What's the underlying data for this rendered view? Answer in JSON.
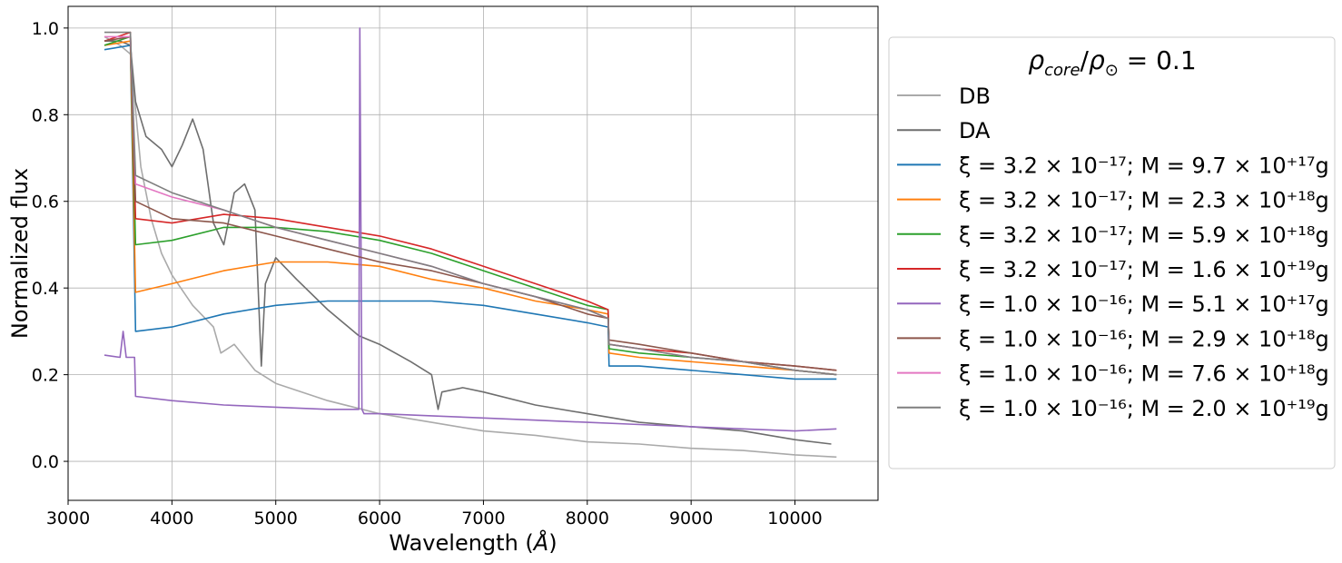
{
  "chart_data": {
    "type": "line",
    "title": "",
    "xlabel": "Wavelength ($\\AA$)",
    "ylabel": "Normalized flux",
    "xlim": [
      3000,
      10800
    ],
    "ylim": [
      -0.09,
      1.05
    ],
    "xticks": [
      "3000",
      "4000",
      "5000",
      "6000",
      "7000",
      "8000",
      "9000",
      "10000"
    ],
    "yticks": [
      "0.0",
      "0.2",
      "0.4",
      "0.6",
      "0.8",
      "1.0"
    ],
    "grid": true,
    "legend_placement": "outside-right",
    "legend_title": "ρ_core/ρ_⊙ = 0.1",
    "series": [
      {
        "name": "DB",
        "color": "#aaaaaa",
        "x": [
          3350,
          3500,
          3600,
          3700,
          3800,
          3900,
          4000,
          4200,
          4400,
          4471,
          4600,
          4800,
          5000,
          5500,
          6000,
          6500,
          7000,
          7500,
          8000,
          8500,
          9000,
          9500,
          10000,
          10400
        ],
        "y": [
          0.98,
          0.96,
          0.94,
          0.68,
          0.56,
          0.48,
          0.43,
          0.36,
          0.31,
          0.25,
          0.27,
          0.21,
          0.18,
          0.14,
          0.11,
          0.09,
          0.07,
          0.06,
          0.045,
          0.04,
          0.03,
          0.025,
          0.015,
          0.01
        ]
      },
      {
        "name": "DA",
        "color": "#6e6e6e",
        "x": [
          3350,
          3500,
          3600,
          3650,
          3750,
          3900,
          4000,
          4100,
          4200,
          4300,
          4400,
          4500,
          4600,
          4700,
          4800,
          4861,
          4900,
          5000,
          5200,
          5500,
          5800,
          6000,
          6300,
          6500,
          6563,
          6600,
          6800,
          7000,
          7500,
          8000,
          8500,
          9000,
          9500,
          10000,
          10350
        ],
        "y": [
          0.97,
          0.97,
          0.96,
          0.83,
          0.75,
          0.72,
          0.68,
          0.73,
          0.79,
          0.72,
          0.55,
          0.5,
          0.62,
          0.64,
          0.58,
          0.22,
          0.41,
          0.47,
          0.42,
          0.35,
          0.29,
          0.27,
          0.23,
          0.2,
          0.12,
          0.16,
          0.17,
          0.16,
          0.13,
          0.11,
          0.09,
          0.08,
          0.07,
          0.05,
          0.04
        ]
      },
      {
        "name": "ξ = 3.2 × 10⁻¹⁷; M = 9.7 × 10⁺¹⁷g",
        "color": "#1f77b4",
        "x": [
          3350,
          3600,
          3650,
          4000,
          4500,
          5000,
          5500,
          6000,
          6500,
          7000,
          7500,
          8000,
          8200,
          8210,
          8500,
          9000,
          9500,
          10000,
          10400
        ],
        "y": [
          0.95,
          0.96,
          0.3,
          0.31,
          0.34,
          0.36,
          0.37,
          0.37,
          0.37,
          0.36,
          0.34,
          0.32,
          0.31,
          0.22,
          0.22,
          0.21,
          0.2,
          0.19,
          0.19
        ]
      },
      {
        "name": "ξ = 3.2 × 10⁻¹⁷; M = 2.3 × 10⁺¹⁸g",
        "color": "#ff7f0e",
        "x": [
          3350,
          3600,
          3650,
          4000,
          4500,
          5000,
          5500,
          6000,
          6500,
          7000,
          7500,
          8000,
          8200,
          8210,
          8500,
          9000,
          9500,
          10000,
          10400
        ],
        "y": [
          0.96,
          0.97,
          0.39,
          0.41,
          0.44,
          0.46,
          0.46,
          0.45,
          0.42,
          0.4,
          0.37,
          0.35,
          0.34,
          0.25,
          0.24,
          0.23,
          0.22,
          0.21,
          0.2
        ]
      },
      {
        "name": "ξ = 3.2 × 10⁻¹⁷; M = 5.9 × 10⁺¹⁸g",
        "color": "#2ca02c",
        "x": [
          3350,
          3600,
          3650,
          4000,
          4500,
          5000,
          5500,
          6000,
          6500,
          7000,
          7500,
          8000,
          8200,
          8210,
          8500,
          9000,
          9500,
          10000,
          10400
        ],
        "y": [
          0.96,
          0.98,
          0.5,
          0.51,
          0.54,
          0.54,
          0.53,
          0.51,
          0.48,
          0.44,
          0.4,
          0.36,
          0.35,
          0.26,
          0.25,
          0.24,
          0.23,
          0.21,
          0.2
        ]
      },
      {
        "name": "ξ = 3.2 × 10⁻¹⁷; M = 1.6 × 10⁺¹⁹g",
        "color": "#d62728",
        "x": [
          3350,
          3600,
          3650,
          4000,
          4500,
          5000,
          5500,
          6000,
          6500,
          7000,
          7500,
          8000,
          8200,
          8210,
          8500,
          9000,
          9500,
          10000,
          10400
        ],
        "y": [
          0.97,
          0.99,
          0.56,
          0.55,
          0.57,
          0.56,
          0.54,
          0.52,
          0.49,
          0.45,
          0.41,
          0.37,
          0.35,
          0.27,
          0.26,
          0.25,
          0.23,
          0.22,
          0.21
        ]
      },
      {
        "name": "ξ = 1.0 × 10⁻¹⁶; M = 5.1 × 10⁺¹⁷g",
        "color": "#9467bd",
        "x": [
          3350,
          3500,
          3530,
          3560,
          3640,
          3650,
          4000,
          4500,
          5000,
          5500,
          5800,
          5810,
          5830,
          5850,
          6000,
          6500,
          7000,
          7500,
          8000,
          8500,
          9000,
          9500,
          10000,
          10400
        ],
        "y": [
          0.245,
          0.24,
          0.3,
          0.24,
          0.24,
          0.15,
          0.14,
          0.13,
          0.125,
          0.12,
          0.12,
          1.0,
          0.12,
          0.11,
          0.11,
          0.105,
          0.1,
          0.095,
          0.09,
          0.085,
          0.08,
          0.075,
          0.07,
          0.075
        ]
      },
      {
        "name": "ξ = 1.0 × 10⁻¹⁶; M = 2.9 × 10⁺¹⁸g",
        "color": "#8c564b",
        "x": [
          3350,
          3600,
          3650,
          4000,
          4500,
          5000,
          5500,
          6000,
          6500,
          7000,
          7500,
          8000,
          8200,
          8210,
          8500,
          9000,
          9500,
          10000,
          10400
        ],
        "y": [
          0.97,
          0.98,
          0.6,
          0.56,
          0.55,
          0.52,
          0.49,
          0.46,
          0.44,
          0.41,
          0.38,
          0.34,
          0.33,
          0.28,
          0.27,
          0.25,
          0.23,
          0.22,
          0.21
        ]
      },
      {
        "name": "ξ = 1.0 × 10⁻¹⁶; M = 7.6 × 10⁺¹⁸g",
        "color": "#e377c2",
        "x": [
          3350,
          3600,
          3650,
          4000,
          4500,
          5000,
          5500,
          6000,
          6500,
          7000,
          7500,
          8000,
          8200,
          8210,
          8500,
          9000,
          9500,
          10000,
          10400
        ],
        "y": [
          0.98,
          0.98,
          0.64,
          0.61,
          0.58,
          0.54,
          0.51,
          0.48,
          0.45,
          0.41,
          0.38,
          0.35,
          0.33,
          0.27,
          0.26,
          0.24,
          0.23,
          0.21,
          0.2
        ]
      },
      {
        "name": "ξ = 1.0 × 10⁻¹⁶; M = 2.0 × 10⁺¹⁹g",
        "color": "#7f7f7f",
        "x": [
          3350,
          3600,
          3650,
          4000,
          4500,
          5000,
          5500,
          6000,
          6500,
          7000,
          7500,
          8000,
          8200,
          8210,
          8500,
          9000,
          9500,
          10000,
          10400
        ],
        "y": [
          0.99,
          0.99,
          0.66,
          0.62,
          0.58,
          0.54,
          0.51,
          0.48,
          0.45,
          0.41,
          0.38,
          0.35,
          0.33,
          0.27,
          0.26,
          0.24,
          0.23,
          0.21,
          0.2
        ]
      }
    ]
  }
}
